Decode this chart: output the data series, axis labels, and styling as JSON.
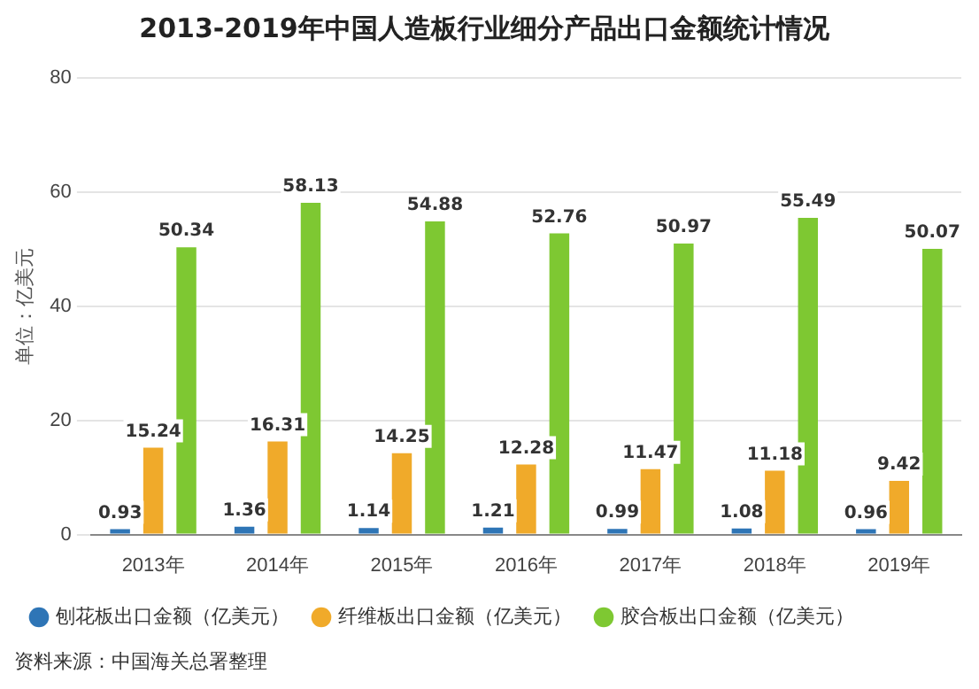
{
  "chart_data": {
    "type": "bar",
    "title": "2013-2019年中国人造板行业细分产品出口金额统计情况",
    "ylabel": "单位：亿美元",
    "categories": [
      "2013年",
      "2014年",
      "2015年",
      "2016年",
      "2017年",
      "2018年",
      "2019年"
    ],
    "series": [
      {
        "name": "刨花板出口金额（亿美元）",
        "color": "#2e75b6",
        "values": [
          0.93,
          1.36,
          1.14,
          1.21,
          0.99,
          1.08,
          0.96
        ]
      },
      {
        "name": "纤维板出口金额（亿美元）",
        "color": "#f0aa2a",
        "values": [
          15.24,
          16.31,
          14.25,
          12.28,
          11.47,
          11.18,
          9.42
        ]
      },
      {
        "name": "胶合板出口金额（亿美元）",
        "color": "#7ec832",
        "values": [
          50.34,
          58.13,
          54.88,
          52.76,
          50.97,
          55.49,
          50.07
        ]
      }
    ],
    "ylim": [
      0,
      80
    ],
    "yticks": [
      0,
      20,
      40,
      60,
      80
    ],
    "grid": "y",
    "legend": "bottom",
    "data_labels": true,
    "annotations": [
      "资料来源：中国海关总署整理"
    ]
  }
}
